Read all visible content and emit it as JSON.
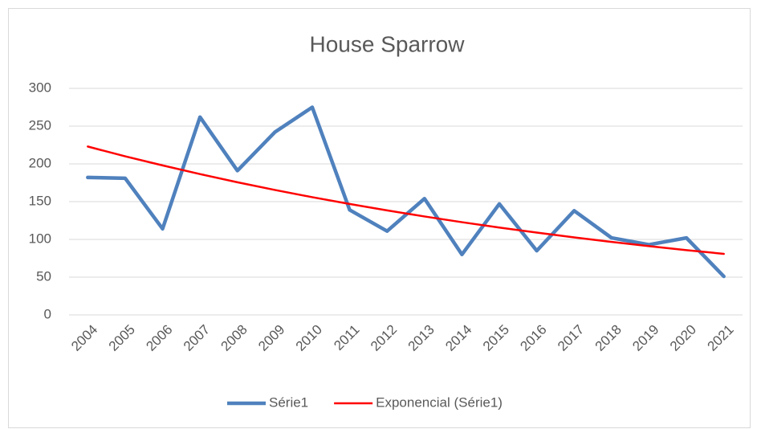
{
  "chart_data": {
    "type": "line",
    "title": "House Sparrow",
    "categories": [
      "2004",
      "2005",
      "2006",
      "2007",
      "2008",
      "2009",
      "2010",
      "2011",
      "2012",
      "2013",
      "2014",
      "2015",
      "2016",
      "2017",
      "2018",
      "2019",
      "2020",
      "2021"
    ],
    "series": [
      {
        "name": "Série1",
        "color": "#4f81bd",
        "values": [
          182,
          181,
          114,
          262,
          191,
          242,
          275,
          139,
          111,
          154,
          80,
          147,
          85,
          138,
          102,
          93,
          102,
          51
        ]
      },
      {
        "name": "Exponencial (Série1)",
        "color": "#ff0000",
        "values": [
          223,
          210,
          198,
          186.5,
          175.7,
          165.5,
          155.9,
          146.9,
          138.4,
          130.4,
          122.8,
          115.7,
          109,
          102.7,
          96.7,
          91.1,
          85.8,
          80.9
        ]
      }
    ],
    "ylim": [
      0,
      300
    ],
    "yticks": [
      0,
      50,
      100,
      150,
      200,
      250,
      300
    ],
    "grid": true,
    "legend": "bottom"
  }
}
